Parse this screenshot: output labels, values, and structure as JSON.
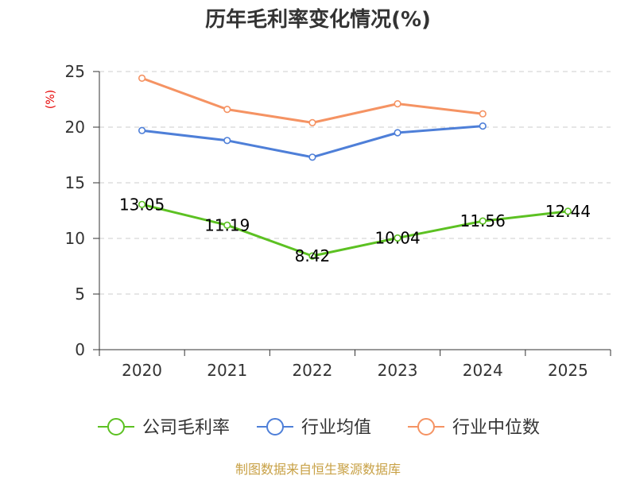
{
  "chart_data": {
    "type": "line",
    "title": "历年毛利率变化情况(%)",
    "ylabel": "(%)",
    "xlabel": "",
    "categories": [
      "2020",
      "2021",
      "2022",
      "2023",
      "2024",
      "2025"
    ],
    "ylim": [
      0,
      25
    ],
    "yticks": [
      0,
      5,
      10,
      15,
      20,
      25
    ],
    "grid": true,
    "legend_position": "bottom",
    "series": [
      {
        "name": "公司毛利率",
        "color": "#5cc122",
        "values": [
          13.05,
          11.19,
          8.42,
          10.04,
          11.56,
          12.44
        ],
        "show_labels": true
      },
      {
        "name": "行业均值",
        "color": "#4e7fd8",
        "values": [
          19.7,
          18.8,
          17.3,
          19.5,
          20.1,
          null
        ],
        "show_labels": false
      },
      {
        "name": "行业中位数",
        "color": "#f59363",
        "values": [
          24.4,
          21.6,
          20.4,
          22.1,
          21.2,
          null
        ],
        "show_labels": false
      }
    ],
    "source_note": "制图数据来自恒生聚源数据库"
  }
}
